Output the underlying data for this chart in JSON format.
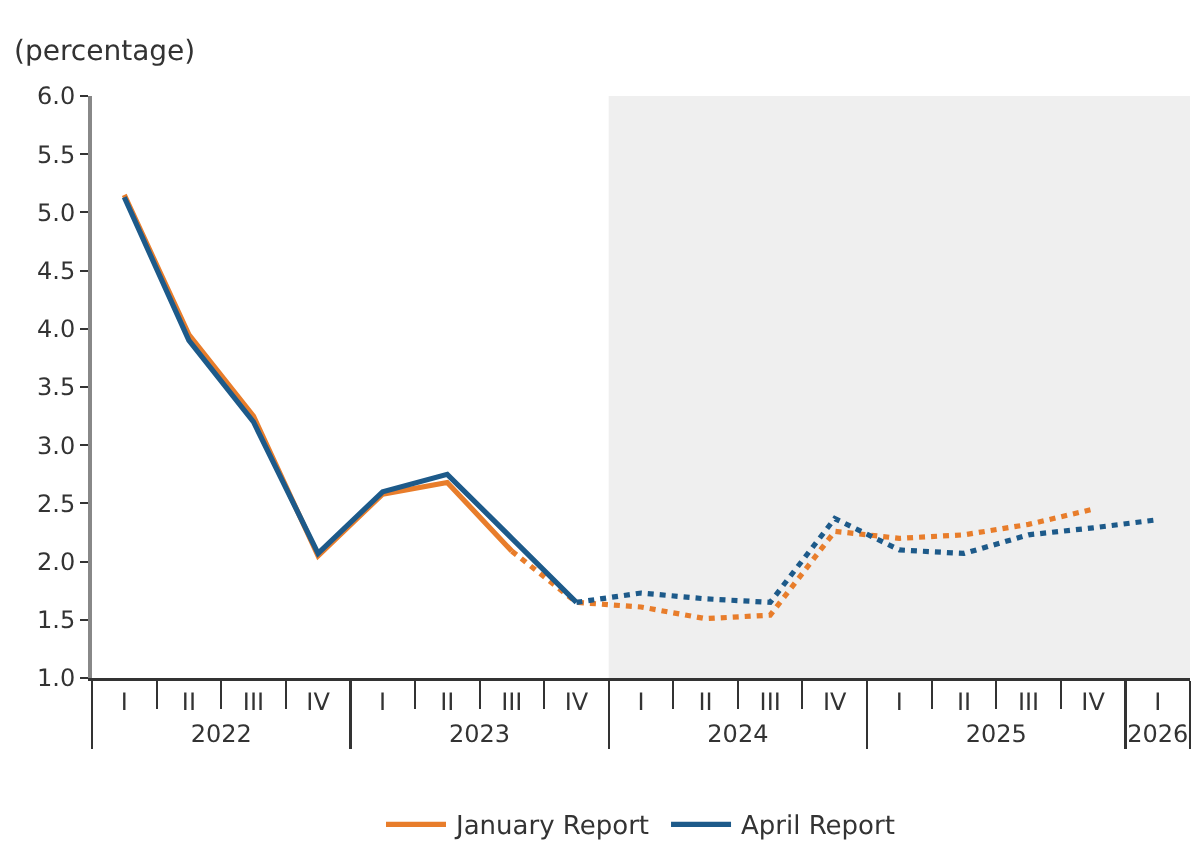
{
  "chart_data": {
    "type": "line",
    "ylabel": "(percentage)",
    "categories": [
      "I",
      "II",
      "III",
      "IV",
      "I",
      "II",
      "III",
      "IV",
      "I",
      "II",
      "III",
      "IV",
      "I",
      "II",
      "III",
      "IV",
      "I"
    ],
    "annotations": [
      "2022",
      "2023",
      "2024",
      "2025",
      "2026"
    ],
    "series": [
      {
        "name": "January Report",
        "color": "#e87d2b",
        "line_style": "solid",
        "values": [
          5.15,
          3.95,
          3.25,
          2.05,
          2.58,
          2.68,
          2.09,
          null,
          null,
          null,
          null,
          null,
          null,
          null,
          null,
          null,
          null
        ]
      },
      {
        "color": "#e87d2b",
        "line_style": "dotted",
        "values": [
          null,
          null,
          null,
          null,
          null,
          null,
          2.09,
          1.65,
          1.61,
          1.51,
          1.54,
          2.26,
          2.2,
          2.23,
          2.32,
          2.45,
          null
        ]
      },
      {
        "name": "April Report",
        "color": "#1d5a8a",
        "line_style": "solid",
        "values": [
          5.13,
          3.9,
          3.2,
          2.07,
          2.6,
          2.75,
          2.2,
          1.65,
          null,
          null,
          null,
          null,
          null,
          null,
          null,
          null,
          null
        ]
      },
      {
        "color": "#1d5a8a",
        "line_style": "dotted",
        "values": [
          null,
          null,
          null,
          null,
          null,
          null,
          null,
          1.65,
          1.73,
          1.68,
          1.65,
          2.37,
          2.1,
          2.07,
          2.23,
          2.29,
          2.36
        ]
      }
    ],
    "ylim": [
      1,
      6
    ],
    "yticks": [
      {
        "value": 1,
        "label": "1.0"
      },
      {
        "value": 1.5,
        "label": "1.5"
      },
      {
        "value": 2,
        "label": "2.0"
      },
      {
        "value": 2.5,
        "label": "2.5"
      },
      {
        "value": 3,
        "label": "3.0"
      },
      {
        "value": 3.5,
        "label": "3.5"
      },
      {
        "value": 4,
        "label": "4.0"
      },
      {
        "value": 4.5,
        "label": "4.5"
      },
      {
        "value": 5,
        "label": "5.0"
      },
      {
        "value": 5.5,
        "label": "5.5"
      },
      {
        "value": 6,
        "label": "6.0"
      }
    ],
    "grid": false,
    "legend": "bottom",
    "marker": "none"
  }
}
